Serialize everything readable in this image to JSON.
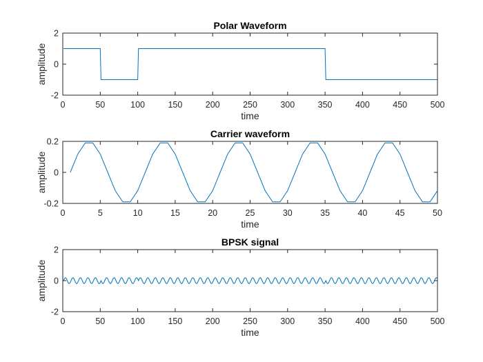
{
  "colors": {
    "series": "#0072bd",
    "axis": "#262626"
  },
  "chart_data": [
    {
      "type": "line",
      "title": "Polar Waveform",
      "xlabel": "time",
      "ylabel": "amplitude",
      "xlim": [
        0,
        500
      ],
      "ylim": [
        -2,
        2
      ],
      "xticks": [
        0,
        50,
        100,
        150,
        200,
        250,
        300,
        350,
        400,
        450,
        500
      ],
      "yticks": [
        -2,
        0,
        2
      ],
      "grid": false,
      "series": [
        {
          "x": [
            1,
            50,
            51,
            100,
            101,
            350,
            351,
            500
          ],
          "y": [
            1,
            1,
            -1,
            -1,
            1,
            1,
            -1,
            -1
          ]
        }
      ]
    },
    {
      "type": "line",
      "title": "Carrier waveform",
      "xlabel": "time",
      "ylabel": "amplitude",
      "xlim": [
        0,
        50
      ],
      "ylim": [
        -0.2,
        0.2
      ],
      "xticks": [
        0,
        5,
        10,
        15,
        20,
        25,
        30,
        35,
        40,
        45,
        50
      ],
      "yticks": [
        -0.2,
        0,
        0.2
      ],
      "grid": false,
      "series": [
        {
          "x": [
            1,
            2,
            3,
            4,
            5,
            6,
            7,
            8,
            9,
            10,
            11,
            12,
            13,
            14,
            15,
            16,
            17,
            18,
            19,
            20,
            21,
            22,
            23,
            24,
            25,
            26,
            27,
            28,
            29,
            30,
            31,
            32,
            33,
            34,
            35,
            36,
            37,
            38,
            39,
            40,
            41,
            42,
            43,
            44,
            45,
            46,
            47,
            48,
            49,
            50
          ],
          "y": [
            0,
            0.118,
            0.19,
            0.19,
            0.118,
            0,
            -0.118,
            -0.19,
            -0.19,
            -0.118,
            0,
            0.118,
            0.19,
            0.19,
            0.118,
            0,
            -0.118,
            -0.19,
            -0.19,
            -0.118,
            0,
            0.118,
            0.19,
            0.19,
            0.118,
            0,
            -0.118,
            -0.19,
            -0.19,
            -0.118,
            0,
            0.118,
            0.19,
            0.19,
            0.118,
            0,
            -0.118,
            -0.19,
            -0.19,
            -0.118,
            0,
            0.118,
            0.19,
            0.19,
            0.118,
            0,
            -0.118,
            -0.19,
            -0.19,
            -0.118
          ]
        }
      ]
    },
    {
      "type": "line",
      "title": "BPSK signal",
      "xlabel": "time",
      "ylabel": "amplitude",
      "xlim": [
        0,
        500
      ],
      "ylim": [
        -2,
        2
      ],
      "xticks": [
        0,
        50,
        100,
        150,
        200,
        250,
        300,
        350,
        400,
        450,
        500
      ],
      "yticks": [
        -2,
        0,
        2
      ],
      "grid": false,
      "series": [
        {
          "description": "Carrier of amplitude 0.19 and period 10 samples, phase inverted where the polar waveform is -1 (samples 51-100 and 351-500).",
          "amplitude": 0.19,
          "period": 10,
          "x_start": 1,
          "x_end": 500,
          "inverted_ranges": [
            [
              51,
              100
            ],
            [
              351,
              500
            ]
          ]
        }
      ]
    }
  ]
}
